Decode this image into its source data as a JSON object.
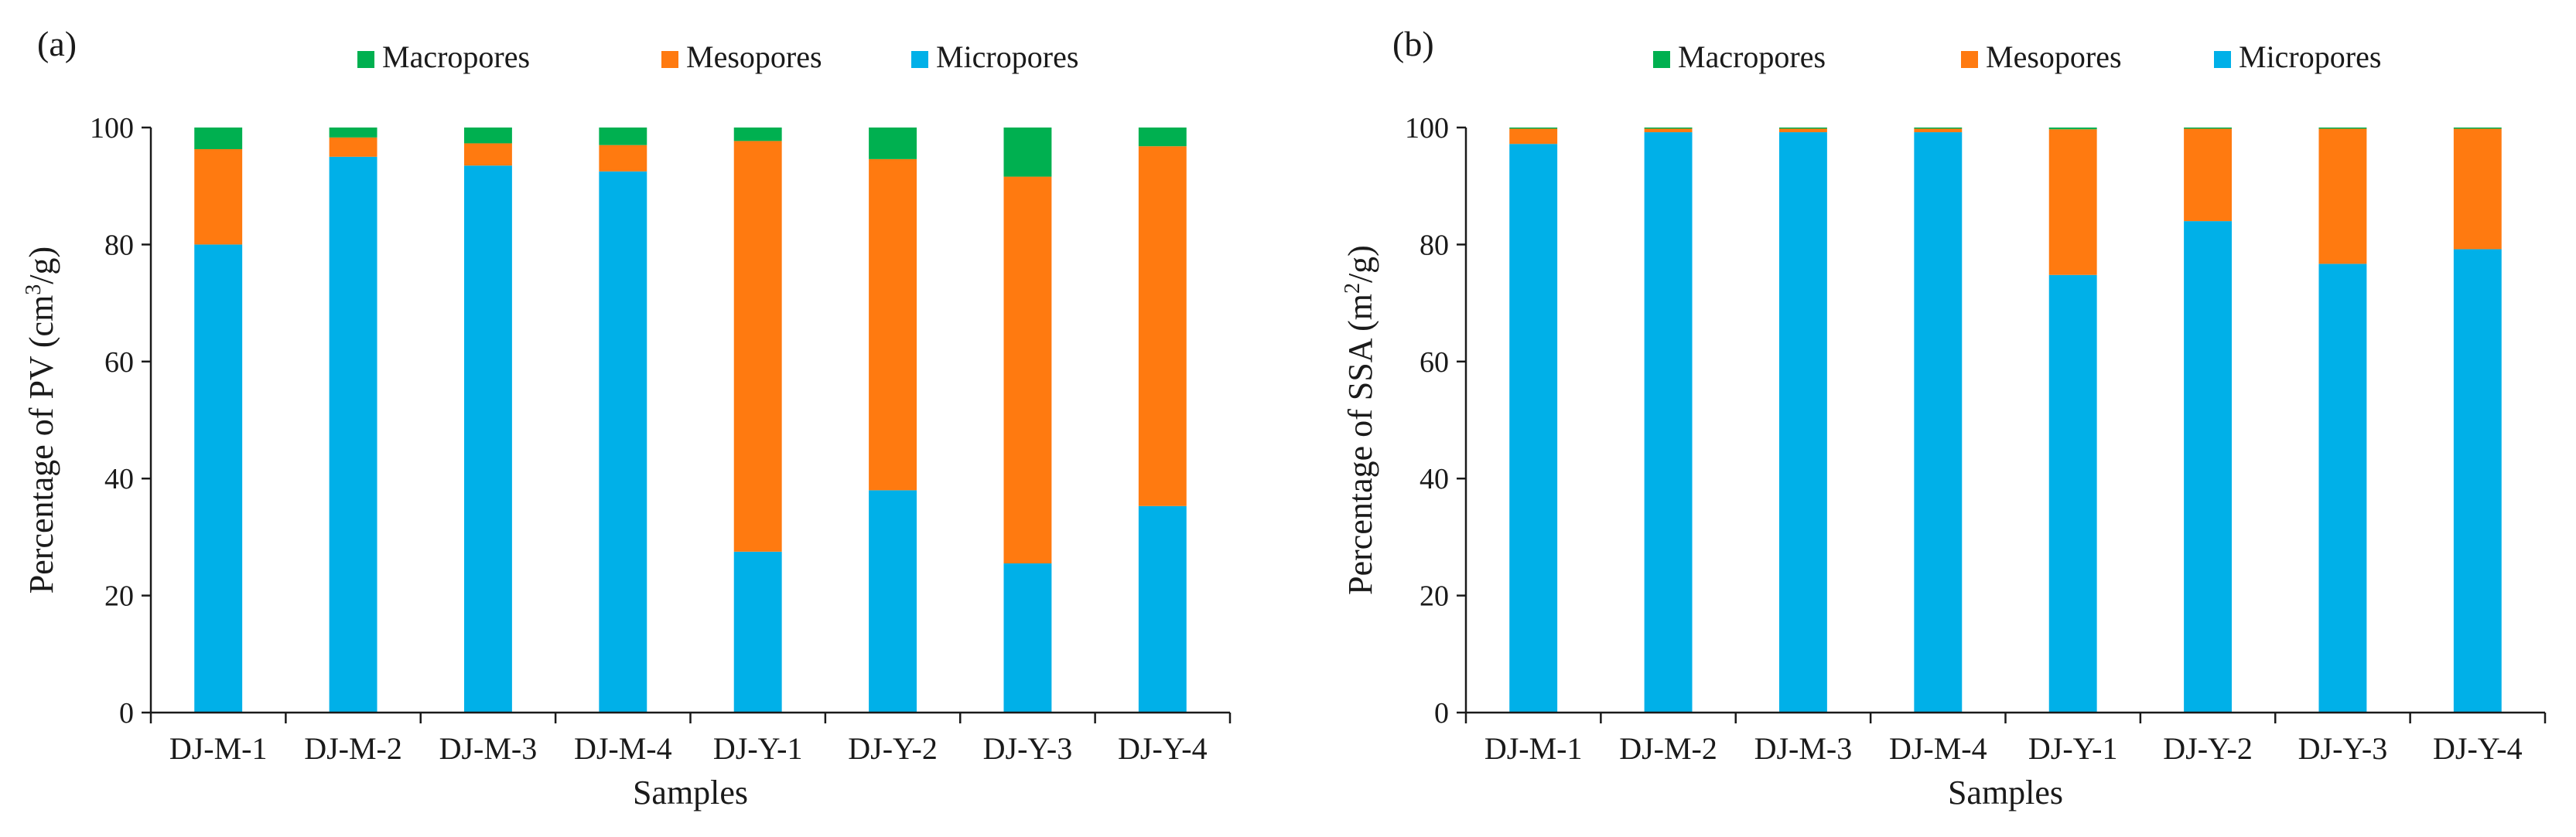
{
  "colors": {
    "Macropores": "#00b050",
    "Mesopores": "#ff7a10",
    "Micropores": "#00b0e8",
    "axis": "#1a1a1a"
  },
  "chart_data": [
    {
      "type": "bar",
      "stacked": true,
      "panel_label": "(a)",
      "title": "",
      "xlabel": "Samples",
      "ylabel_prefix": "Percentage of PV (cm",
      "ylabel_sup": "3",
      "ylabel_suffix": "/g)",
      "ylim": [
        0,
        100
      ],
      "yticks": [
        0,
        20,
        40,
        60,
        80,
        100
      ],
      "legend_position": "top",
      "categories": [
        "DJ-M-1",
        "DJ-M-2",
        "DJ-M-3",
        "DJ-M-4",
        "DJ-Y-1",
        "DJ-Y-2",
        "DJ-Y-3",
        "DJ-Y-4"
      ],
      "series": [
        {
          "name": "Micropores",
          "values": [
            80.0,
            95.0,
            93.5,
            92.5,
            27.5,
            38.0,
            25.5,
            35.3
          ]
        },
        {
          "name": "Mesopores",
          "values": [
            16.3,
            3.3,
            3.8,
            4.5,
            70.2,
            56.6,
            66.1,
            61.5
          ]
        },
        {
          "name": "Macropores",
          "values": [
            3.7,
            1.7,
            2.7,
            3.0,
            2.3,
            5.4,
            8.4,
            3.2
          ]
        }
      ],
      "legend_order": [
        "Macropores",
        "Mesopores",
        "Micropores"
      ]
    },
    {
      "type": "bar",
      "stacked": true,
      "panel_label": "(b)",
      "title": "",
      "xlabel": "Samples",
      "ylabel_prefix": "Percentage of SSA (m",
      "ylabel_sup": "2",
      "ylabel_suffix": "/g)",
      "ylim": [
        0,
        100
      ],
      "yticks": [
        0,
        20,
        40,
        60,
        80,
        100
      ],
      "legend_position": "top",
      "categories": [
        "DJ-M-1",
        "DJ-M-2",
        "DJ-M-3",
        "DJ-M-4",
        "DJ-Y-1",
        "DJ-Y-2",
        "DJ-Y-3",
        "DJ-Y-4"
      ],
      "series": [
        {
          "name": "Micropores",
          "values": [
            97.2,
            99.2,
            99.2,
            99.2,
            74.8,
            84.0,
            76.7,
            79.2
          ]
        },
        {
          "name": "Mesopores",
          "values": [
            2.6,
            0.6,
            0.6,
            0.6,
            24.9,
            15.8,
            23.1,
            20.6
          ]
        },
        {
          "name": "Macropores",
          "values": [
            0.2,
            0.2,
            0.2,
            0.2,
            0.3,
            0.2,
            0.2,
            0.2
          ]
        }
      ],
      "legend_order": [
        "Macropores",
        "Mesopores",
        "Micropores"
      ]
    }
  ]
}
